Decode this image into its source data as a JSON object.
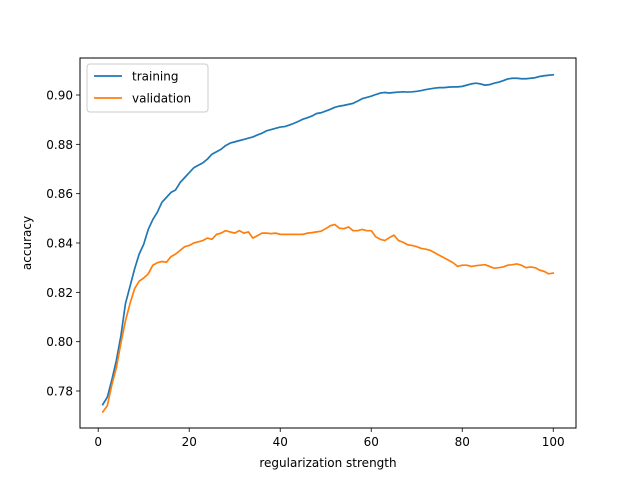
{
  "chart_data": {
    "type": "line",
    "xlabel": "regularization strength",
    "ylabel": "accuracy",
    "xlim": [
      -4,
      105
    ],
    "ylim": [
      0.765,
      0.915
    ],
    "x_ticks": [
      0,
      20,
      40,
      60,
      80,
      100
    ],
    "y_ticks": [
      0.78,
      0.8,
      0.82,
      0.84,
      0.86,
      0.88,
      0.9
    ],
    "grid": false,
    "legend_position": "top-left",
    "x": [
      1,
      2,
      3,
      4,
      5,
      6,
      7,
      8,
      9,
      10,
      11,
      12,
      13,
      14,
      15,
      16,
      17,
      18,
      19,
      20,
      21,
      22,
      23,
      24,
      25,
      26,
      27,
      28,
      29,
      30,
      31,
      32,
      33,
      34,
      35,
      36,
      37,
      38,
      39,
      40,
      41,
      42,
      43,
      44,
      45,
      46,
      47,
      48,
      49,
      50,
      51,
      52,
      53,
      54,
      55,
      56,
      57,
      58,
      59,
      60,
      61,
      62,
      63,
      64,
      65,
      66,
      67,
      68,
      69,
      70,
      71,
      72,
      73,
      74,
      75,
      76,
      77,
      78,
      79,
      80,
      81,
      82,
      83,
      84,
      85,
      86,
      87,
      88,
      89,
      90,
      91,
      92,
      93,
      94,
      95,
      96,
      97,
      98,
      99,
      100
    ],
    "series": [
      {
        "name": "training",
        "color": "#1f77b4",
        "values": [
          0.7745,
          0.7775,
          0.7845,
          0.7925,
          0.8025,
          0.8155,
          0.8225,
          0.8295,
          0.8355,
          0.8395,
          0.8455,
          0.8495,
          0.8525,
          0.8565,
          0.8585,
          0.8605,
          0.8615,
          0.8645,
          0.8665,
          0.8685,
          0.8705,
          0.8715,
          0.8725,
          0.874,
          0.876,
          0.877,
          0.878,
          0.8795,
          0.8805,
          0.881,
          0.8815,
          0.882,
          0.8825,
          0.883,
          0.8838,
          0.8845,
          0.8855,
          0.886,
          0.8865,
          0.887,
          0.8872,
          0.8878,
          0.8885,
          0.8893,
          0.8902,
          0.8908,
          0.8915,
          0.8925,
          0.8928,
          0.8935,
          0.8942,
          0.895,
          0.8955,
          0.8958,
          0.8962,
          0.8966,
          0.8975,
          0.8985,
          0.899,
          0.8995,
          0.9002,
          0.9008,
          0.901,
          0.9008,
          0.901,
          0.9012,
          0.9013,
          0.9012,
          0.9013,
          0.9015,
          0.9018,
          0.9022,
          0.9025,
          0.9028,
          0.903,
          0.903,
          0.9032,
          0.9033,
          0.9033,
          0.9035,
          0.904,
          0.9045,
          0.9048,
          0.9045,
          0.904,
          0.9042,
          0.9048,
          0.9052,
          0.9058,
          0.9065,
          0.9068,
          0.9068,
          0.9066,
          0.9066,
          0.9068,
          0.907,
          0.9075,
          0.9078,
          0.908,
          0.9082
        ]
      },
      {
        "name": "validation",
        "color": "#ff7f0e",
        "values": [
          0.7715,
          0.774,
          0.7825,
          0.7895,
          0.7995,
          0.8085,
          0.8155,
          0.8215,
          0.8245,
          0.8258,
          0.8275,
          0.831,
          0.832,
          0.8325,
          0.8322,
          0.8345,
          0.8355,
          0.837,
          0.8385,
          0.839,
          0.84,
          0.8405,
          0.841,
          0.842,
          0.8415,
          0.8435,
          0.844,
          0.845,
          0.8445,
          0.844,
          0.845,
          0.844,
          0.8445,
          0.842,
          0.843,
          0.844,
          0.844,
          0.8438,
          0.844,
          0.8435,
          0.8435,
          0.8435,
          0.8435,
          0.8435,
          0.8435,
          0.844,
          0.8442,
          0.8445,
          0.8448,
          0.8458,
          0.847,
          0.8475,
          0.846,
          0.8458,
          0.8465,
          0.845,
          0.845,
          0.8455,
          0.845,
          0.845,
          0.8425,
          0.8415,
          0.841,
          0.8422,
          0.8432,
          0.841,
          0.8403,
          0.8393,
          0.839,
          0.8385,
          0.8378,
          0.8375,
          0.837,
          0.836,
          0.835,
          0.834,
          0.833,
          0.832,
          0.8305,
          0.831,
          0.831,
          0.8305,
          0.8308,
          0.831,
          0.8312,
          0.8305,
          0.8298,
          0.83,
          0.8303,
          0.831,
          0.8312,
          0.8315,
          0.831,
          0.83,
          0.8303,
          0.83,
          0.829,
          0.8285,
          0.8275,
          0.8278
        ]
      }
    ]
  }
}
